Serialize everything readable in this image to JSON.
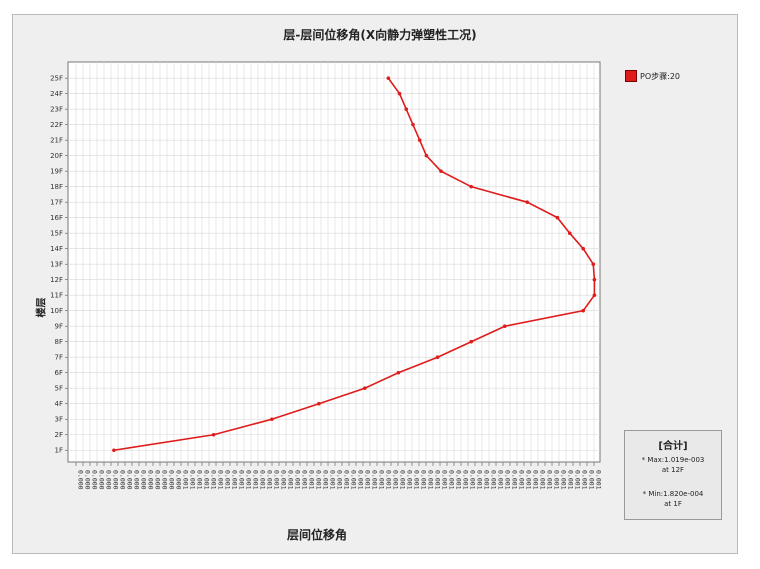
{
  "chart_data": {
    "type": "line",
    "title": "层-层间位移角(X向静力弹塑性工况)",
    "xlabel": "层间位移角",
    "ylabel": "楼层",
    "categories": [
      "1F",
      "2F",
      "3F",
      "4F",
      "5F",
      "6F",
      "7F",
      "8F",
      "9F",
      "10F",
      "11F",
      "12F",
      "13F",
      "14F",
      "15F",
      "16F",
      "17F",
      "18F",
      "19F",
      "20F",
      "21F",
      "22F",
      "23F",
      "24F",
      "25F"
    ],
    "x_tick_labels": [
      "0.000",
      "0.000",
      "0.000",
      "0.000",
      "0.000",
      "0.000",
      "0.000",
      "0.000",
      "0.000",
      "0.000",
      "0.000",
      "0.000",
      "0.000",
      "0.000",
      "0.000",
      "0.001",
      "0.001",
      "0.001",
      "0.001",
      "0.001",
      "0.001",
      "0.001",
      "0.001",
      "0.001",
      "0.001",
      "0.001",
      "0.001",
      "0.001",
      "0.001",
      "0.001",
      "0.001",
      "0.001",
      "0.001",
      "0.001",
      "0.001",
      "0.001",
      "0.001",
      "0.001",
      "0.001",
      "0.001",
      "0.001",
      "0.001",
      "0.001",
      "0.001",
      "0.001",
      "0.001",
      "0.001",
      "0.001",
      "0.001",
      "0.001",
      "0.001",
      "0.001",
      "0.001",
      "0.001",
      "0.001",
      "0.001",
      "0.001",
      "0.001",
      "0.001",
      "0.001",
      "0.001",
      "0.001",
      "0.001",
      "0.001",
      "0.001",
      "0.001",
      "0.001",
      "0.001",
      "0.001",
      "0.001",
      "0.001",
      "0.001",
      "0.001",
      "0.001",
      "0.001"
    ],
    "xlim": [
      0.0001,
      0.00105
    ],
    "series": [
      {
        "name": "PO步骤:20",
        "color": "#e01b1b",
        "values": [
          0.000182,
          0.00036,
          0.000464,
          0.000548,
          0.00063,
          0.00069,
          0.00076,
          0.00082,
          0.00088,
          0.00102,
          0.00104,
          0.00104,
          0.001038,
          0.00102,
          0.000996,
          0.000974,
          0.00092,
          0.00082,
          0.000766,
          0.00074,
          0.000728,
          0.000716,
          0.000704,
          0.000692,
          0.000672
        ]
      }
    ],
    "grid": true,
    "legend_position": "right"
  },
  "summary": {
    "heading": "[合计]",
    "max_line": "* Max:1.019e-003",
    "max_at": "at 12F",
    "min_line": "* Min:1.820e-004",
    "min_at": "at 1F"
  }
}
